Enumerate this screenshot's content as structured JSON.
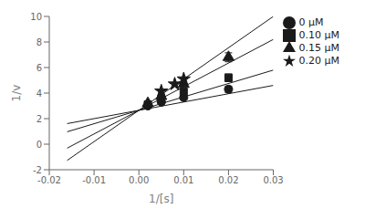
{
  "chart_data": {
    "type": "scatter",
    "xlabel": "1/[s]",
    "ylabel": "1/v",
    "xlim": [
      -0.02,
      0.03
    ],
    "ylim": [
      -2,
      10
    ],
    "xticks": [
      -0.02,
      -0.01,
      {
        "value": 0,
        "label": "0.00"
      },
      0.01,
      0.02,
      0.03
    ],
    "yticks": [
      -2,
      0,
      2,
      4,
      6,
      8,
      10
    ],
    "legend": "right",
    "series": [
      {
        "name": "0 μM",
        "color": "#1a1a1a",
        "marker": "circle",
        "x": [
          0.002,
          0.005,
          0.01,
          0.02
        ],
        "values": [
          3.0,
          3.3,
          3.65,
          4.3
        ],
        "errors": [
          0,
          0,
          0,
          0.25
        ],
        "fit_x": [
          -0.016,
          0.03
        ],
        "fit_y": [
          1.61,
          4.6
        ]
      },
      {
        "name": "0.10 μM",
        "color": "#1a1a1a",
        "marker": "square",
        "x": [
          0.002,
          0.005,
          0.01,
          0.02
        ],
        "values": [
          3.1,
          3.5,
          4.1,
          5.2
        ],
        "errors": [
          0,
          0,
          0,
          0.3
        ],
        "fit_x": [
          -0.016,
          0.03
        ],
        "fit_y": [
          0.97,
          5.8
        ]
      },
      {
        "name": "0.15 μM",
        "color": "#1a1a1a",
        "marker": "triangle",
        "x": [
          0.002,
          0.005,
          0.01,
          0.02
        ],
        "values": [
          3.2,
          3.75,
          4.7,
          6.8
        ],
        "errors": [
          0,
          0,
          0,
          0.35
        ],
        "fit_x": [
          -0.016,
          0.03
        ],
        "fit_y": [
          -0.31,
          8.2
        ]
      },
      {
        "name": "0.20 μM",
        "color": "#1a1a1a",
        "marker": "star",
        "x": [
          0.005,
          0.008,
          0.01
        ],
        "values": [
          4.15,
          4.7,
          5.1
        ],
        "errors": [
          0,
          0,
          0
        ],
        "fit_x": [
          -0.016,
          0.03
        ],
        "fit_y": [
          -1.27,
          10
        ]
      }
    ]
  }
}
